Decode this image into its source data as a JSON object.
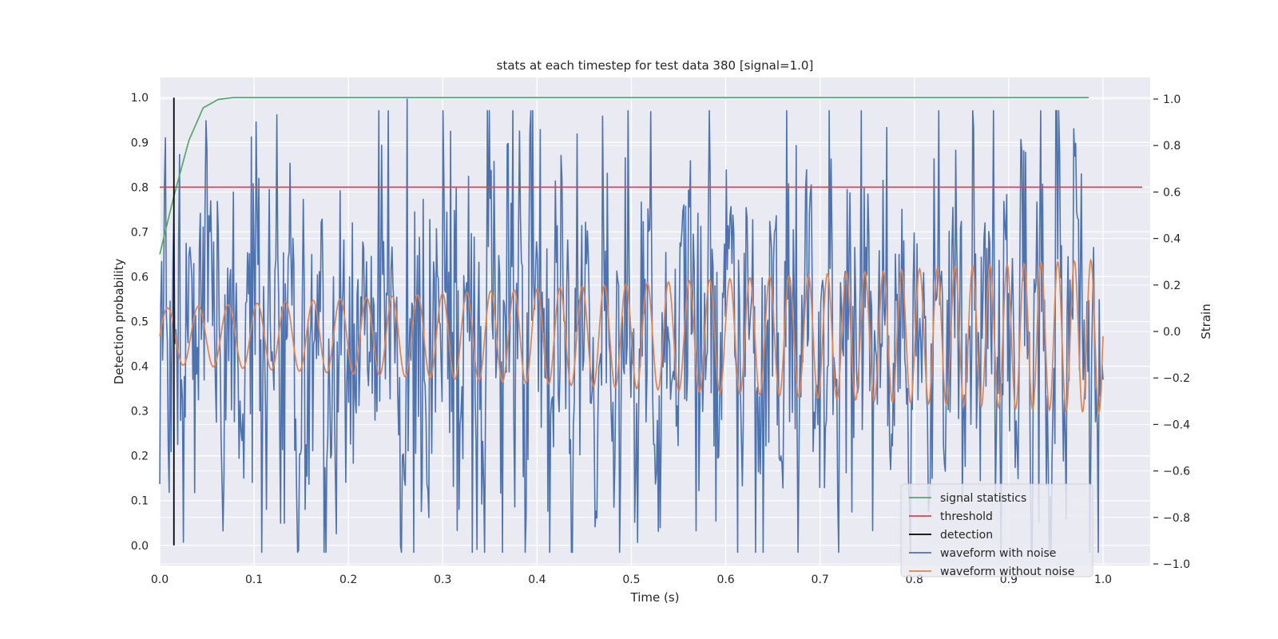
{
  "chart_data": {
    "type": "line",
    "title": "stats at each timestep for test data 380 [signal=1.0]",
    "xlabel": "Time (s)",
    "ylabel": "Detection probability",
    "y2label": "Strain",
    "xlim": [
      0.0,
      1.05
    ],
    "ylim": [
      -0.045,
      1.045
    ],
    "y2lim": [
      -1.0,
      1.0
    ],
    "xticks": [
      "0.0",
      "0.1",
      "0.2",
      "0.3",
      "0.4",
      "0.5",
      "0.6",
      "0.7",
      "0.8",
      "0.9",
      "1.0"
    ],
    "yticks": [
      "0.0",
      "0.1",
      "0.2",
      "0.3",
      "0.4",
      "0.5",
      "0.6",
      "0.7",
      "0.8",
      "0.9",
      "1.0"
    ],
    "y2ticks": [
      "−1.0",
      "−0.8",
      "−0.6",
      "−0.4",
      "−0.2",
      "0.0",
      "0.2",
      "0.4",
      "0.6",
      "0.8",
      "1.0"
    ],
    "grid": true,
    "legend_position": "lower-right",
    "colors": {
      "signal_statistics": "#55a868",
      "threshold": "#c44e52",
      "detection": "#000000",
      "waveform_noise": "#4c72b0",
      "waveform_clean": "#dd8452",
      "plot_bg": "#eaeaf2",
      "grid": "#ffffff"
    },
    "series": [
      {
        "name": "signal statistics",
        "axis": "left",
        "x": [
          0.0,
          0.015,
          0.031,
          0.046,
          0.062,
          0.078,
          0.1,
          0.2,
          0.3,
          0.4,
          0.5,
          0.6,
          0.7,
          0.8,
          0.9,
          0.985
        ],
        "values": [
          0.65,
          0.78,
          0.905,
          0.977,
          0.996,
          1.0,
          1.0,
          1.0,
          1.0,
          1.0,
          1.0,
          1.0,
          1.0,
          1.0,
          1.0,
          1.0
        ]
      },
      {
        "name": "threshold",
        "axis": "left",
        "x": [
          0.0,
          1.05
        ],
        "values": [
          0.8,
          0.8
        ]
      },
      {
        "name": "detection",
        "axis": "left",
        "x": [
          0.015,
          0.015
        ],
        "values": [
          0.0,
          1.0
        ]
      },
      {
        "name": "waveform with noise",
        "axis": "right",
        "x_range": [
          0.0,
          1.0
        ],
        "n_points": 1000,
        "values_description_note": "",
        "extremes": [
          {
            "x": 0.262,
            "y": 1.0
          },
          {
            "x": 0.255,
            "y": -0.92
          },
          {
            "x": 0.187,
            "y": -0.87
          },
          {
            "x": 0.285,
            "y": -0.8
          },
          {
            "x": 0.884,
            "y": 0.95
          },
          {
            "x": 0.932,
            "y": -0.82
          },
          {
            "x": 0.442,
            "y": 0.85
          },
          {
            "x": 0.675,
            "y": 0.8
          }
        ]
      },
      {
        "name": "waveform without noise",
        "axis": "right",
        "x_range": [
          0.0,
          1.0
        ],
        "amplitude_start": 0.12,
        "amplitude_end": 0.33,
        "freq_start_hz": 30,
        "freq_end_hz": 58
      }
    ],
    "legend": [
      "signal statistics",
      "threshold",
      "detection",
      "waveform with noise",
      "waveform without noise"
    ]
  }
}
